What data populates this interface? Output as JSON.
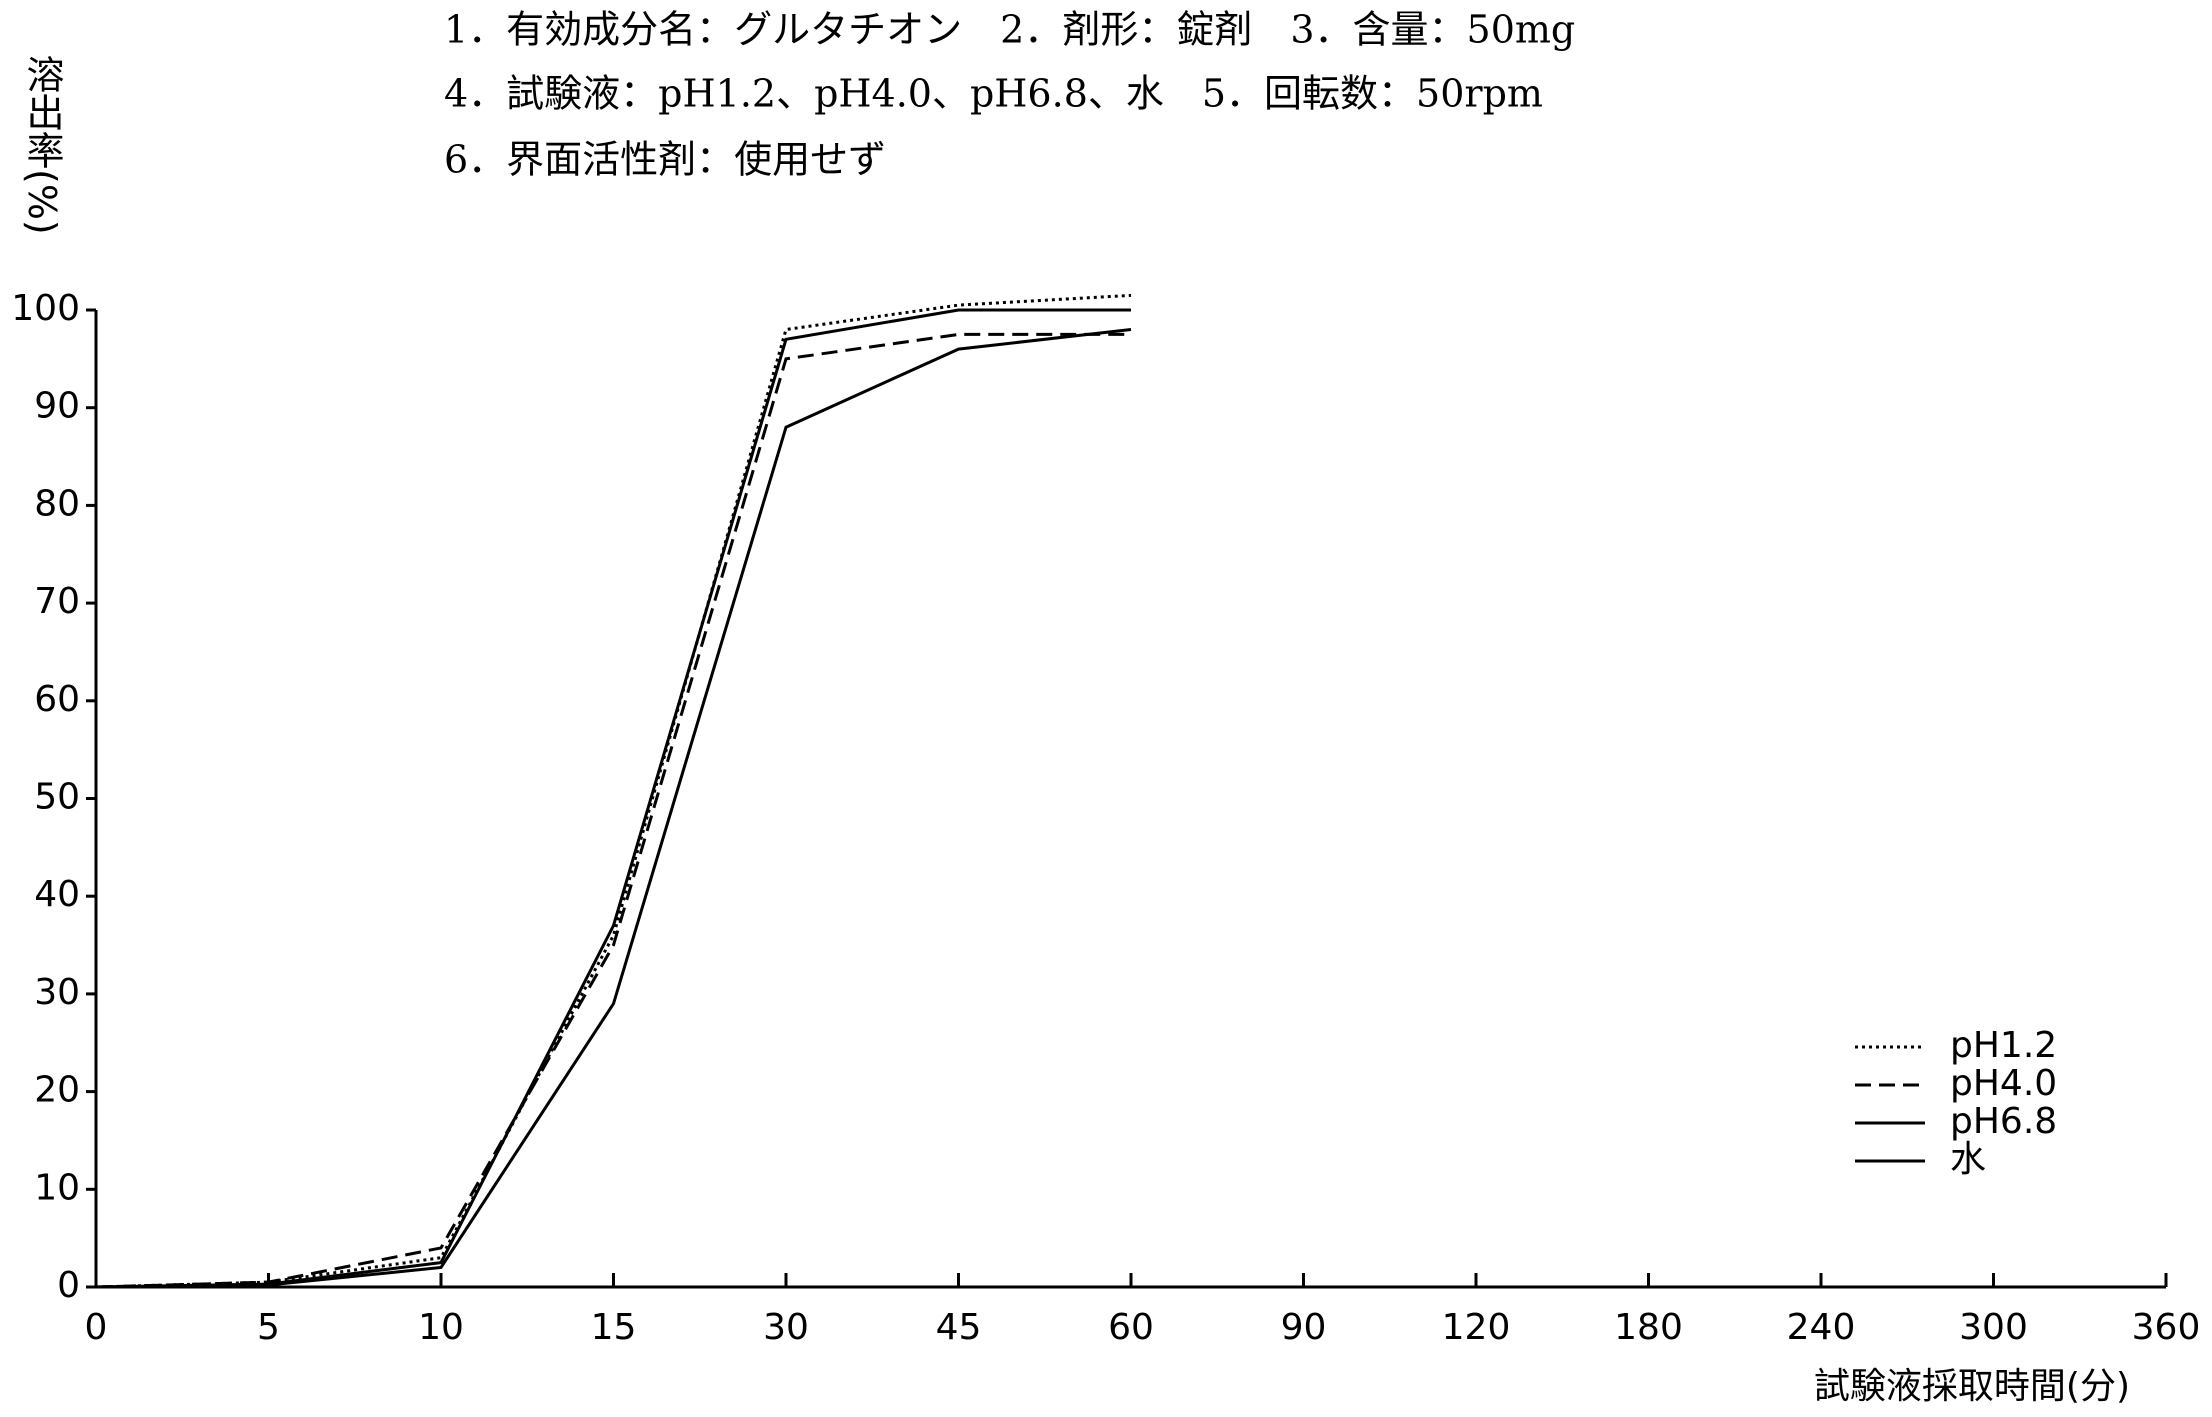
{
  "chart_data": {
    "type": "line",
    "notes": [
      "1．有効成分名：グルタチオン　2．剤形：錠剤　3．含量：50mg",
      "4．試験液：pH1.2、pH4.0、pH6.8、水　5．回転数：50rpm",
      "6．界面活性剤：使用せず"
    ],
    "ylabel": "溶出率(%)",
    "xlabel": "試験液採取時間(分)",
    "categories": [
      "0",
      "5",
      "10",
      "15",
      "30",
      "45",
      "60",
      "90",
      "120",
      "180",
      "240",
      "300",
      "360"
    ],
    "series": [
      {
        "name": "pH1.2",
        "color": "#000000",
        "linestyle": "dotted",
        "values": [
          0,
          0.5,
          3,
          36,
          98,
          100.5,
          101.5,
          null,
          null,
          null,
          null,
          null,
          null
        ]
      },
      {
        "name": "pH4.0",
        "color": "#000000",
        "linestyle": "dashed",
        "values": [
          0,
          0.5,
          4,
          35,
          95,
          97.5,
          97.5,
          null,
          null,
          null,
          null,
          null,
          null
        ]
      },
      {
        "name": "pH6.8",
        "color": "#000000",
        "linestyle": "solid",
        "values": [
          0,
          0.3,
          2.5,
          37,
          97,
          100,
          100,
          null,
          null,
          null,
          null,
          null,
          null
        ]
      },
      {
        "name": "水",
        "color": "#000000",
        "linestyle": "solid",
        "values": [
          0,
          0.2,
          2,
          29,
          88,
          96,
          98,
          null,
          null,
          null,
          null,
          null,
          null
        ]
      }
    ],
    "ylim": [
      0,
      100
    ],
    "yticks": [
      0,
      10,
      20,
      30,
      40,
      50,
      60,
      70,
      80,
      90,
      100
    ],
    "grid": false,
    "legend": "lower right"
  }
}
